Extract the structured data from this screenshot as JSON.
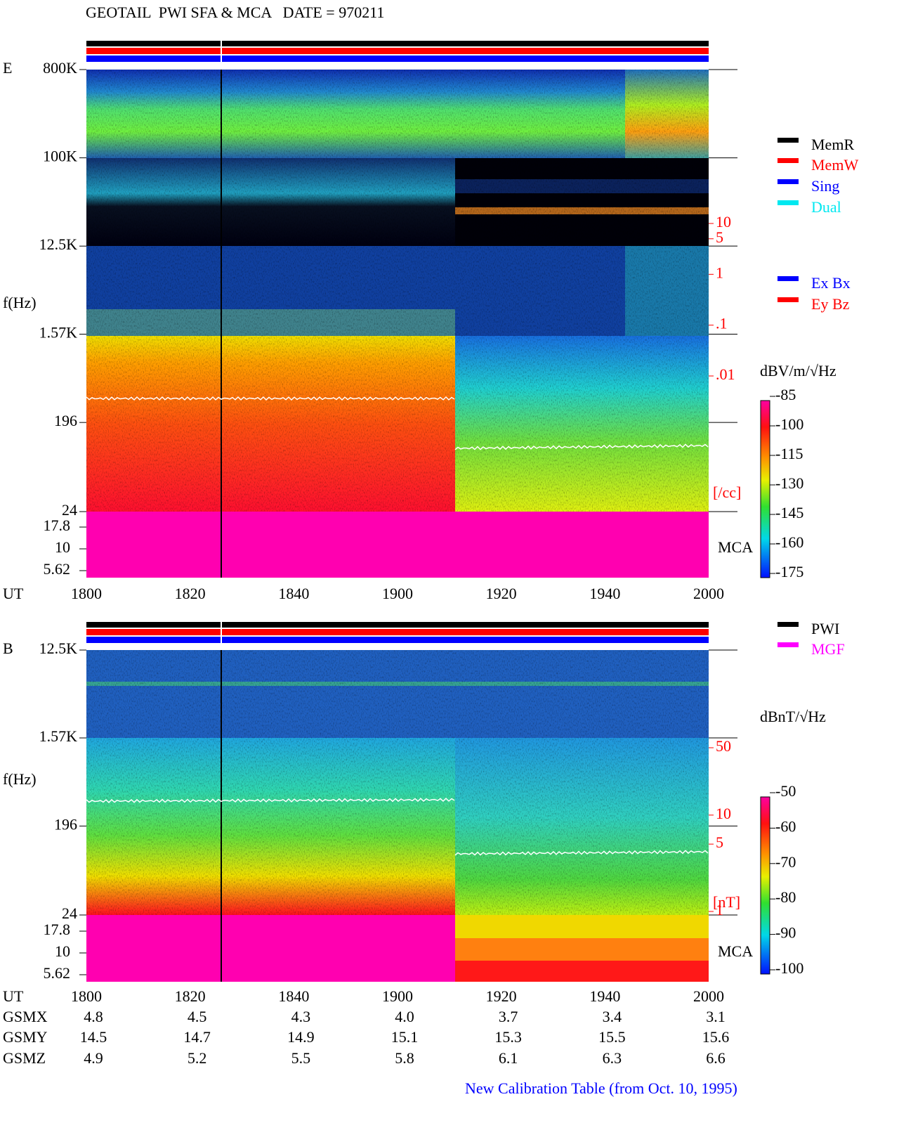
{
  "header": {
    "title": "GEOTAIL  PWI SFA & MCA   DATE = 970211"
  },
  "chart_data": [
    {
      "type": "spectrogram",
      "panel_label": "E",
      "y_label": "f(Hz)",
      "log_y": true,
      "ylim": [
        24,
        800000
      ],
      "yticks": [
        {
          "value": 800000,
          "label": "800K"
        },
        {
          "value": 100000,
          "label": "100K"
        },
        {
          "value": 12500,
          "label": "12.5K"
        },
        {
          "value": 1570,
          "label": "1.57K"
        },
        196,
        24
      ],
      "mca_label": "MCA",
      "mca_ticks": [
        17.8,
        10,
        5.62
      ],
      "x_label": "UT",
      "categories": [
        "1800",
        "1820",
        "1840",
        "1900",
        "1920",
        "1940",
        "2000"
      ],
      "colorbar_label": "dBV/m/√Hz",
      "colorbar_lim": [
        -175,
        -85
      ],
      "colorbar_ticks": [
        -85,
        -100,
        -115,
        -130,
        -145,
        -160,
        -175
      ],
      "density_lim": [
        0.01,
        10
      ],
      "density_ticks": [
        10,
        5,
        1,
        {
          "value": 0.1,
          "label": ".1"
        },
        {
          "value": 0.01,
          "label": ".01"
        }
      ],
      "density_unit": "[/cc]",
      "legend": [
        {
          "name": "MemR",
          "color": "#000000"
        },
        {
          "name": "MemW",
          "color": "#ff0000"
        },
        {
          "name": "Sing",
          "color": "#0000ff"
        },
        {
          "name": "Dual",
          "color": "#00e8f0"
        }
      ],
      "legend_components": [
        {
          "name": "Ex Bx",
          "color": "#0000ff"
        },
        {
          "name": "Ey Bz",
          "color": "#ff0000"
        }
      ]
    },
    {
      "type": "spectrogram",
      "panel_label": "B",
      "y_label": "f(Hz)",
      "log_y": true,
      "ylim": [
        24,
        12500
      ],
      "yticks": [
        {
          "value": 12500,
          "label": "12.5K"
        },
        {
          "value": 1570,
          "label": "1.57K"
        },
        196,
        24
      ],
      "mca_label": "MCA",
      "mca_ticks": [
        17.8,
        10,
        5.62
      ],
      "x_label": "UT",
      "categories": [
        "1800",
        "1820",
        "1840",
        "1900",
        "1920",
        "1940",
        "2000"
      ],
      "colorbar_label": "dBnT/√Hz",
      "colorbar_lim": [
        -100,
        -50
      ],
      "colorbar_ticks": [
        -50,
        -60,
        -70,
        -80,
        -90,
        -100
      ],
      "density_lim": [
        1,
        50
      ],
      "density_ticks": [
        50,
        10,
        5,
        1
      ],
      "density_unit": "[nT]",
      "legend": [
        {
          "name": "PWI",
          "color": "#000000"
        },
        {
          "name": "MGF",
          "color": "#ff00ff"
        }
      ]
    }
  ],
  "orbit": {
    "rows": [
      {
        "name": "GSMX",
        "values": [
          "4.8",
          "4.5",
          "4.3",
          "4.0",
          "3.7",
          "3.4",
          "3.1"
        ]
      },
      {
        "name": "GSMY",
        "values": [
          "14.5",
          "14.7",
          "14.9",
          "15.1",
          "15.3",
          "15.5",
          "15.6"
        ]
      },
      {
        "name": "GSMZ",
        "values": [
          "4.9",
          "5.2",
          "5.5",
          "5.8",
          "6.1",
          "6.3",
          "6.6"
        ]
      }
    ]
  },
  "footer": {
    "note": "New Calibration Table (from Oct. 10, 1995)"
  }
}
